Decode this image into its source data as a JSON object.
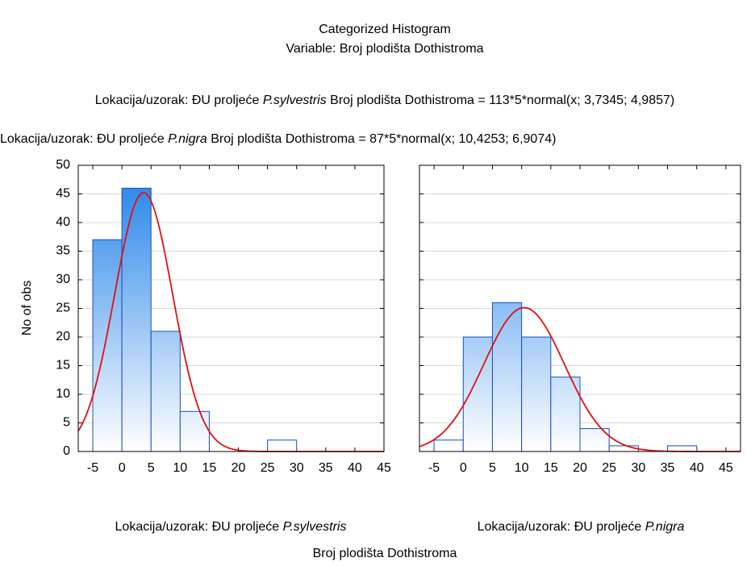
{
  "title": "Categorized Histogram",
  "subtitle": "Variable: Broj plodišta Dothistroma",
  "y_label": "No of obs",
  "x_label": "Broj plodišta Dothistroma",
  "chart_data": [
    {
      "type": "histogram",
      "category_prefix": "Lokacija/uzorak: ĐU proljeće",
      "category_italic": "P.sylvestris",
      "fit_label": "Broj plodišta Dothistroma = 113*5*normal(x; 3,7345; 4,9857)",
      "bins": [
        -5,
        0,
        5,
        10,
        15,
        20,
        25,
        30,
        35,
        40,
        45
      ],
      "values": [
        37,
        46,
        21,
        7,
        0,
        0,
        2,
        0,
        0,
        0
      ],
      "color": "#1e7fe8",
      "fit": {
        "n": 113,
        "width": 5,
        "mean": 3.7345,
        "sd": 4.9857,
        "color": "#e01010"
      },
      "xlim": [
        -7.5,
        45
      ],
      "xticks": [
        -5,
        0,
        5,
        10,
        15,
        20,
        25,
        30,
        35,
        40,
        45
      ],
      "ylim": [
        0,
        50
      ],
      "yticks": [
        0,
        5,
        10,
        15,
        20,
        25,
        30,
        35,
        40,
        45,
        50
      ],
      "grid": true
    },
    {
      "type": "histogram",
      "category_prefix": "Lokacija/uzorak: ĐU proljeće",
      "category_italic": "P.nigra",
      "fit_label": "Broj plodišta Dothistroma = 87*5*normal(x; 10,4253; 6,9074)",
      "bins": [
        -5,
        0,
        5,
        10,
        15,
        20,
        25,
        30,
        35,
        40,
        45
      ],
      "values": [
        2,
        20,
        26,
        20,
        13,
        4,
        1,
        0,
        1,
        0
      ],
      "color": "#1e7fe8",
      "fit": {
        "n": 87,
        "width": 5,
        "mean": 10.4253,
        "sd": 6.9074,
        "color": "#e01010"
      },
      "xlim": [
        -7.5,
        47.5
      ],
      "xticks": [
        -5,
        0,
        5,
        10,
        15,
        20,
        25,
        30,
        35,
        40,
        45
      ],
      "ylim": [
        0,
        50
      ],
      "yticks": [
        0,
        5,
        10,
        15,
        20,
        25,
        30,
        35,
        40,
        45,
        50
      ],
      "grid": true
    }
  ]
}
